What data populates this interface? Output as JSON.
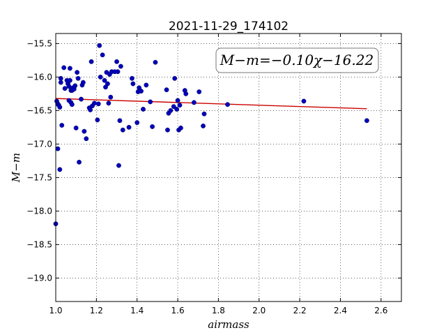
{
  "chart_data": {
    "type": "scatter",
    "title": "2021-11-29_174102",
    "xlabel": "airmass",
    "ylabel": "M−m",
    "xlim": [
      1.0,
      2.7
    ],
    "ylim": [
      -19.35,
      -15.35
    ],
    "y_inverted": true,
    "grid": true,
    "x_ticks": [
      "1.0",
      "1.2",
      "1.4",
      "1.6",
      "1.8",
      "2.0",
      "2.2",
      "2.4",
      "2.6"
    ],
    "x_tick_values": [
      1.0,
      1.2,
      1.4,
      1.6,
      1.8,
      2.0,
      2.2,
      2.4,
      2.6
    ],
    "y_ticks": [
      "−15.5",
      "−16.0",
      "−16.5",
      "−17.0",
      "−17.5",
      "−18.0",
      "−18.5",
      "−19.0"
    ],
    "y_tick_values": [
      -15.5,
      -16.0,
      -16.5,
      -17.0,
      -17.5,
      -18.0,
      -18.5,
      -19.0
    ],
    "annotation": "M−m=−0.10χ−16.22",
    "fit_line": {
      "slope": -0.1,
      "intercept": -16.22,
      "x_range": [
        1.0,
        2.53
      ],
      "color": "#cc0000"
    },
    "point_color": "#0000bb",
    "points": [
      [
        1.0,
        -18.19
      ],
      [
        1.005,
        -16.36
      ],
      [
        1.01,
        -16.4
      ],
      [
        1.01,
        -17.07
      ],
      [
        1.015,
        -16.42
      ],
      [
        1.02,
        -17.38
      ],
      [
        1.02,
        -16.45
      ],
      [
        1.025,
        -16.02
      ],
      [
        1.025,
        -16.08
      ],
      [
        1.03,
        -16.72
      ],
      [
        1.04,
        -15.86
      ],
      [
        1.045,
        -16.17
      ],
      [
        1.055,
        -16.05
      ],
      [
        1.06,
        -16.1
      ],
      [
        1.065,
        -16.14
      ],
      [
        1.065,
        -16.35
      ],
      [
        1.07,
        -16.05
      ],
      [
        1.07,
        -15.87
      ],
      [
        1.075,
        -16.38
      ],
      [
        1.075,
        -16.2
      ],
      [
        1.08,
        -16.2
      ],
      [
        1.08,
        -16.41
      ],
      [
        1.085,
        -16.16
      ],
      [
        1.09,
        -16.18
      ],
      [
        1.095,
        -16.13
      ],
      [
        1.1,
        -16.76
      ],
      [
        1.105,
        -15.93
      ],
      [
        1.11,
        -16.02
      ],
      [
        1.115,
        -17.27
      ],
      [
        1.125,
        -16.33
      ],
      [
        1.13,
        -16.12
      ],
      [
        1.135,
        -16.08
      ],
      [
        1.14,
        -16.81
      ],
      [
        1.15,
        -16.92
      ],
      [
        1.165,
        -16.46
      ],
      [
        1.17,
        -16.49
      ],
      [
        1.175,
        -15.77
      ],
      [
        1.18,
        -16.43
      ],
      [
        1.19,
        -16.39
      ],
      [
        1.205,
        -16.64
      ],
      [
        1.21,
        -16.4
      ],
      [
        1.215,
        -15.53
      ],
      [
        1.22,
        -16.0
      ],
      [
        1.23,
        -15.67
      ],
      [
        1.24,
        -16.05
      ],
      [
        1.245,
        -16.15
      ],
      [
        1.25,
        -15.93
      ],
      [
        1.255,
        -16.1
      ],
      [
        1.26,
        -16.39
      ],
      [
        1.265,
        -15.96
      ],
      [
        1.27,
        -16.3
      ],
      [
        1.275,
        -15.92
      ],
      [
        1.29,
        -15.92
      ],
      [
        1.3,
        -15.77
      ],
      [
        1.305,
        -15.92
      ],
      [
        1.31,
        -17.32
      ],
      [
        1.315,
        -16.65
      ],
      [
        1.32,
        -15.84
      ],
      [
        1.33,
        -16.79
      ],
      [
        1.36,
        -16.75
      ],
      [
        1.375,
        -16.02
      ],
      [
        1.38,
        -16.1
      ],
      [
        1.4,
        -16.68
      ],
      [
        1.405,
        -16.22
      ],
      [
        1.41,
        -16.16
      ],
      [
        1.42,
        -16.21
      ],
      [
        1.43,
        -16.48
      ],
      [
        1.445,
        -16.12
      ],
      [
        1.465,
        -16.37
      ],
      [
        1.475,
        -16.74
      ],
      [
        1.49,
        -15.78
      ],
      [
        1.545,
        -16.19
      ],
      [
        1.55,
        -16.79
      ],
      [
        1.555,
        -16.54
      ],
      [
        1.565,
        -16.5
      ],
      [
        1.58,
        -16.44
      ],
      [
        1.585,
        -16.02
      ],
      [
        1.595,
        -16.48
      ],
      [
        1.6,
        -16.35
      ],
      [
        1.605,
        -16.79
      ],
      [
        1.61,
        -16.42
      ],
      [
        1.615,
        -16.76
      ],
      [
        1.635,
        -16.2
      ],
      [
        1.64,
        -16.25
      ],
      [
        1.68,
        -16.38
      ],
      [
        1.705,
        -16.22
      ],
      [
        1.725,
        -16.73
      ],
      [
        1.73,
        -16.55
      ],
      [
        1.845,
        -16.41
      ],
      [
        2.22,
        -16.36
      ],
      [
        2.53,
        -16.65
      ]
    ]
  }
}
